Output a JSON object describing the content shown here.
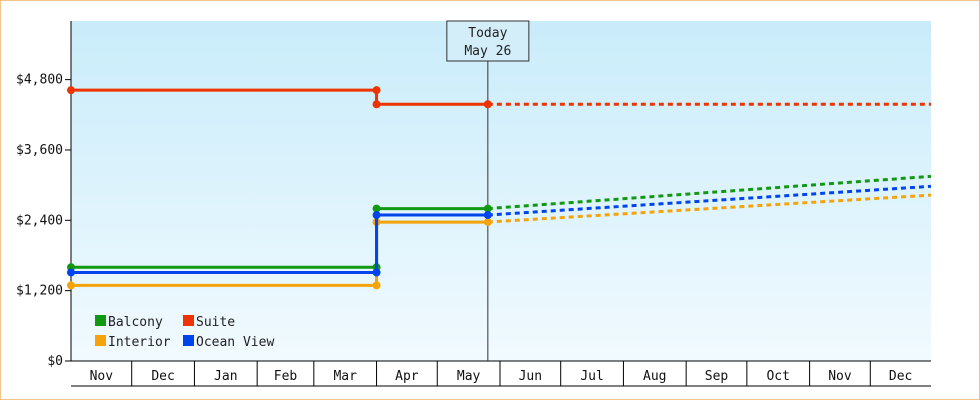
{
  "chart_data": {
    "type": "line",
    "title": "",
    "xlabel": "",
    "ylabel": "",
    "x_range": [
      "Nov 1",
      "Dec 31"
    ],
    "ylim": [
      0,
      5800
    ],
    "y_ticks": [
      {
        "value": 0,
        "label": "$0"
      },
      {
        "value": 1200,
        "label": "$1,200"
      },
      {
        "value": 2400,
        "label": "$2,400"
      },
      {
        "value": 3600,
        "label": "$3,600"
      },
      {
        "value": 4800,
        "label": "$4,800"
      }
    ],
    "x_months": [
      {
        "label": "Nov",
        "start": "Nov 1",
        "end": "Dec 1"
      },
      {
        "label": "Dec",
        "start": "Dec 1",
        "end": "Jan 1"
      },
      {
        "label": "Jan",
        "start": "Jan 1",
        "end": "Feb 1"
      },
      {
        "label": "Feb",
        "start": "Feb 1",
        "end": "Mar 1"
      },
      {
        "label": "Mar",
        "start": "Mar 1",
        "end": "Apr 1"
      },
      {
        "label": "Apr",
        "start": "Apr 1",
        "end": "May 1"
      },
      {
        "label": "May",
        "start": "May 1",
        "end": "Jun 1"
      },
      {
        "label": "Jun",
        "start": "Jun 1",
        "end": "Jul 1"
      },
      {
        "label": "Jul",
        "start": "Jul 1",
        "end": "Aug 1"
      },
      {
        "label": "Aug",
        "start": "Aug 1",
        "end": "Sep 1"
      },
      {
        "label": "Sep",
        "start": "Sep 1",
        "end": "Oct 1"
      },
      {
        "label": "Oct",
        "start": "Oct 1",
        "end": "Nov 1"
      },
      {
        "label": "Nov",
        "start": "Nov 1",
        "end": "Dec 1"
      },
      {
        "label": "Dec",
        "start": "Dec 1",
        "end": "Dec 31"
      }
    ],
    "today": {
      "line1": "Today",
      "line2": "May 26",
      "date": "May 26"
    },
    "grid": false,
    "legend_position": "bottom-left",
    "series": [
      {
        "name": "Balcony",
        "color": "#119911",
        "points": [
          {
            "date": "Nov 1",
            "value": 1600
          },
          {
            "date": "Apr 1",
            "value": 1600
          },
          {
            "date": "Apr 1",
            "value": 2600
          },
          {
            "date": "May 26",
            "value": 2600
          }
        ],
        "forecast": [
          {
            "date": "May 26",
            "value": 2600
          },
          {
            "date": "Dec 31",
            "value": 3150
          }
        ]
      },
      {
        "name": "Suite",
        "color": "#ee3300",
        "points": [
          {
            "date": "Nov 1",
            "value": 4620
          },
          {
            "date": "Apr 1",
            "value": 4620
          },
          {
            "date": "Apr 1",
            "value": 4380
          },
          {
            "date": "May 26",
            "value": 4380
          }
        ],
        "forecast": [
          {
            "date": "May 26",
            "value": 4380
          },
          {
            "date": "Dec 31",
            "value": 4380
          }
        ]
      },
      {
        "name": "Interior",
        "color": "#f5a30a",
        "points": [
          {
            "date": "Nov 1",
            "value": 1290
          },
          {
            "date": "Apr 1",
            "value": 1290
          },
          {
            "date": "Apr 1",
            "value": 2370
          },
          {
            "date": "May 26",
            "value": 2370
          }
        ],
        "forecast": [
          {
            "date": "May 26",
            "value": 2370
          },
          {
            "date": "Dec 31",
            "value": 2830
          }
        ]
      },
      {
        "name": "Ocean View",
        "color": "#0044ee",
        "points": [
          {
            "date": "Nov 1",
            "value": 1510
          },
          {
            "date": "Apr 1",
            "value": 1510
          },
          {
            "date": "Apr 1",
            "value": 2490
          },
          {
            "date": "May 26",
            "value": 2490
          }
        ],
        "forecast": [
          {
            "date": "May 26",
            "value": 2490
          },
          {
            "date": "Dec 31",
            "value": 2980
          }
        ]
      }
    ]
  }
}
